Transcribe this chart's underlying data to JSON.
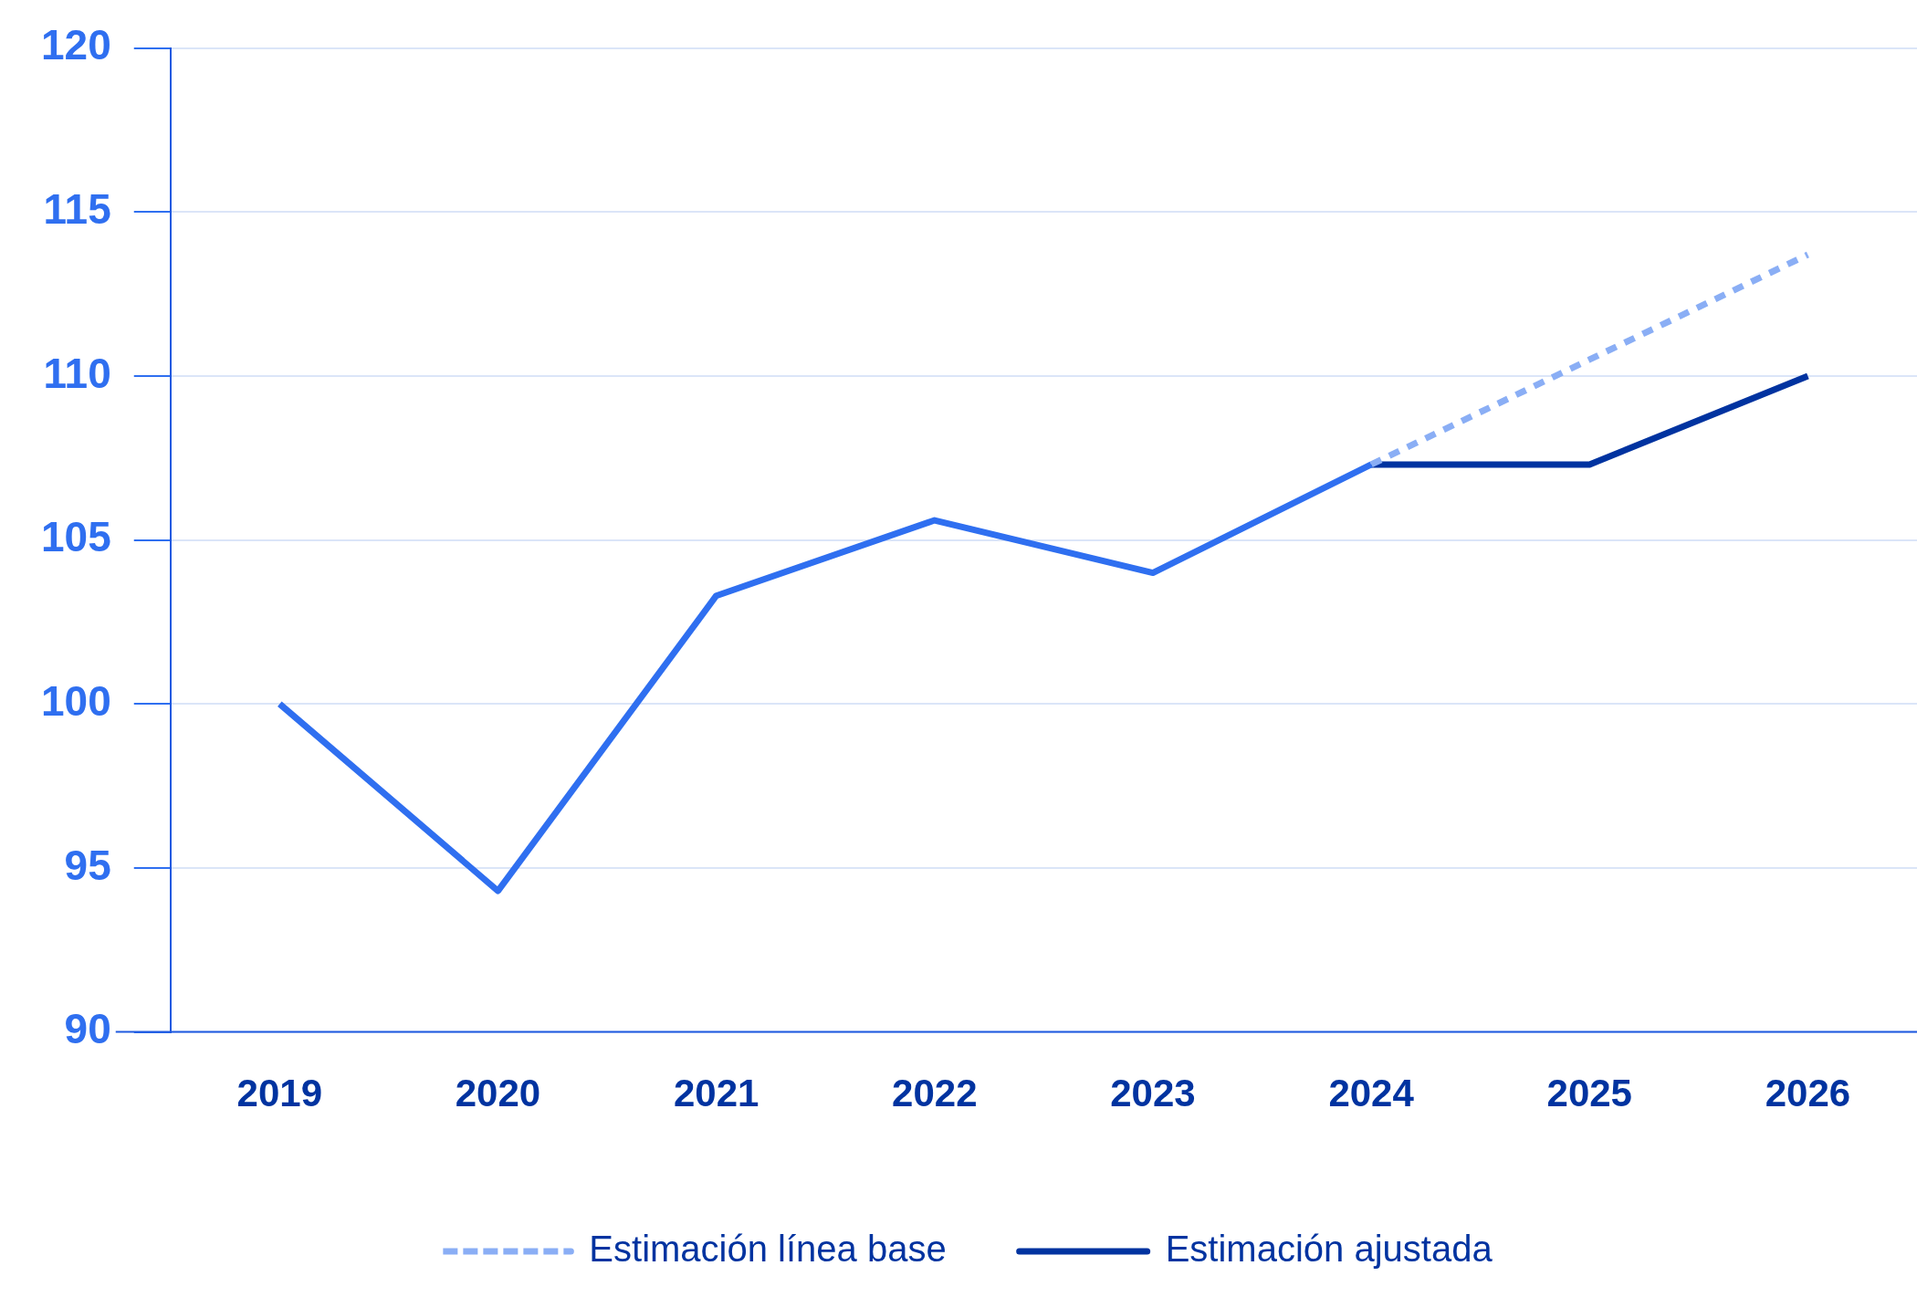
{
  "chart_data": {
    "type": "line",
    "categories": [
      "2019",
      "2020",
      "2021",
      "2022",
      "2023",
      "2024",
      "2025",
      "2026"
    ],
    "series": [
      {
        "color": "#2f6ff0",
        "values": [
          100,
          94.3,
          103.3,
          105.6,
          104.0,
          107.3,
          null,
          null
        ]
      },
      {
        "name": "Estimación línea base",
        "color": "#8aaef5",
        "line_style": "dotted",
        "values": [
          null,
          null,
          null,
          null,
          null,
          107.3,
          110.5,
          113.7
        ]
      },
      {
        "name": "Estimación ajustada",
        "color": "#0033a0",
        "values": [
          null,
          null,
          null,
          null,
          null,
          107.3,
          107.3,
          110
        ]
      }
    ],
    "ylim": [
      90,
      120
    ],
    "yticks": [
      90,
      95,
      100,
      105,
      110,
      115,
      120
    ],
    "grid": "y",
    "legend": "bottom",
    "marker": "none",
    "line_style": "solid"
  }
}
